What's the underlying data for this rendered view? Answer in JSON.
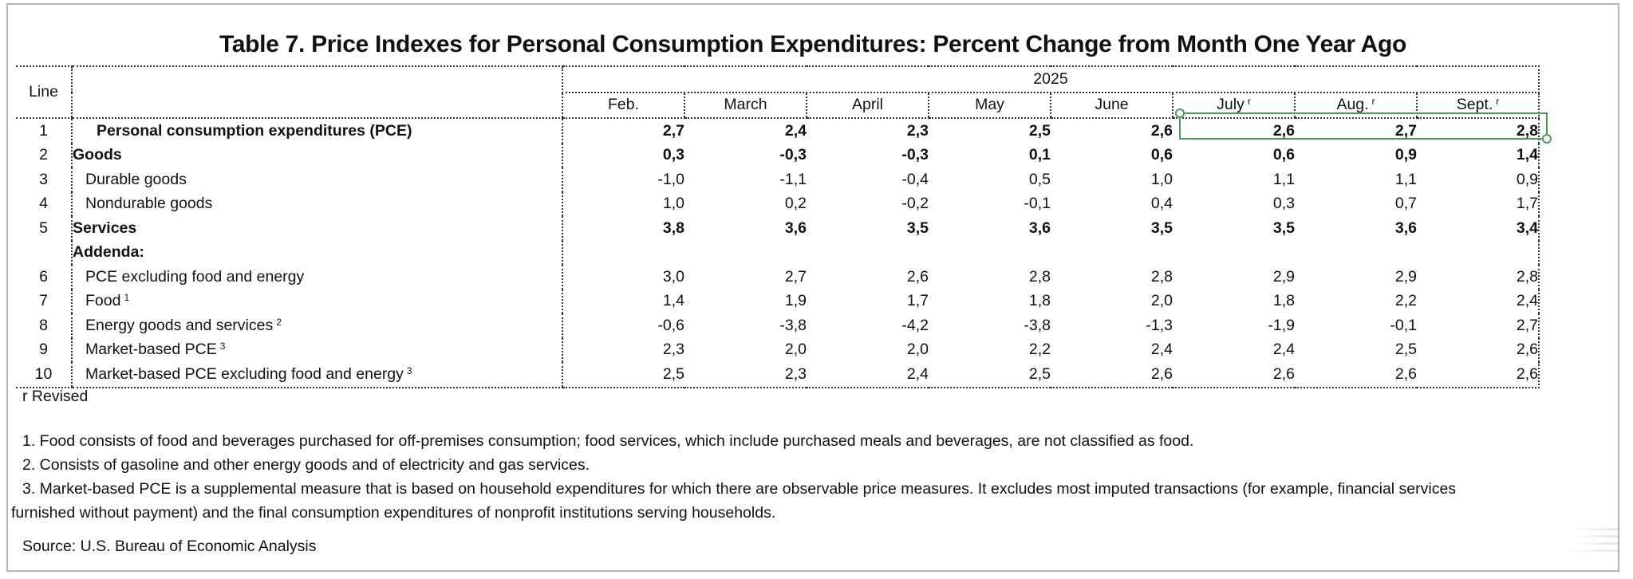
{
  "title": "Table 7. Price Indexes for Personal Consumption Expenditures: Percent Change from Month One Year Ago",
  "table": {
    "line_header": "Line",
    "year": "2025",
    "months": [
      {
        "label": "Feb.",
        "revised_mark": ""
      },
      {
        "label": "March",
        "revised_mark": ""
      },
      {
        "label": "April",
        "revised_mark": ""
      },
      {
        "label": "May",
        "revised_mark": ""
      },
      {
        "label": "June",
        "revised_mark": ""
      },
      {
        "label": "July",
        "revised_mark": "r"
      },
      {
        "label": "Aug.",
        "revised_mark": "r"
      },
      {
        "label": "Sept.",
        "revised_mark": "r"
      }
    ],
    "rows": [
      {
        "line": "1",
        "label": "Personal consumption expenditures (PCE)",
        "note": "",
        "bold": true,
        "indent": 2,
        "values": [
          "2,7",
          "2,4",
          "2,3",
          "2,5",
          "2,6",
          "2,6",
          "2,7",
          "2,8"
        ]
      },
      {
        "line": "2",
        "label": "Goods",
        "note": "",
        "bold": true,
        "indent": 0,
        "values": [
          "0,3",
          "-0,3",
          "-0,3",
          "0,1",
          "0,6",
          "0,6",
          "0,9",
          "1,4"
        ]
      },
      {
        "line": "3",
        "label": "Durable goods",
        "note": "",
        "bold": false,
        "indent": 1,
        "values": [
          "-1,0",
          "-1,1",
          "-0,4",
          "0,5",
          "1,0",
          "1,1",
          "1,1",
          "0,9"
        ]
      },
      {
        "line": "4",
        "label": "Nondurable goods",
        "note": "",
        "bold": false,
        "indent": 1,
        "values": [
          "1,0",
          "0,2",
          "-0,2",
          "-0,1",
          "0,4",
          "0,3",
          "0,7",
          "1,7"
        ]
      },
      {
        "line": "5",
        "label": "Services",
        "note": "",
        "bold": true,
        "indent": 0,
        "values": [
          "3,8",
          "3,6",
          "3,5",
          "3,6",
          "3,5",
          "3,5",
          "3,6",
          "3,4"
        ]
      },
      {
        "line": "",
        "label": "Addenda:",
        "note": "",
        "bold": true,
        "indent": 0,
        "values": [
          "",
          "",
          "",
          "",
          "",
          "",
          "",
          ""
        ]
      },
      {
        "line": "6",
        "label": "PCE excluding food and energy",
        "note": "",
        "bold": false,
        "indent": 1,
        "values": [
          "3,0",
          "2,7",
          "2,6",
          "2,8",
          "2,8",
          "2,9",
          "2,9",
          "2,8"
        ]
      },
      {
        "line": "7",
        "label": "Food",
        "note": "1",
        "bold": false,
        "indent": 1,
        "values": [
          "1,4",
          "1,9",
          "1,7",
          "1,8",
          "2,0",
          "1,8",
          "2,2",
          "2,4"
        ]
      },
      {
        "line": "8",
        "label": "Energy goods and services",
        "note": "2",
        "bold": false,
        "indent": 1,
        "values": [
          "-0,6",
          "-3,8",
          "-4,2",
          "-3,8",
          "-1,3",
          "-1,9",
          "-0,1",
          "2,7"
        ]
      },
      {
        "line": "9",
        "label": "Market-based PCE",
        "note": "3",
        "bold": false,
        "indent": 1,
        "values": [
          "2,3",
          "2,0",
          "2,0",
          "2,2",
          "2,4",
          "2,4",
          "2,5",
          "2,6"
        ]
      },
      {
        "line": "10",
        "label": "Market-based PCE excluding food and energy",
        "note": "3",
        "bold": false,
        "indent": 1,
        "values": [
          "2,5",
          "2,3",
          "2,4",
          "2,5",
          "2,6",
          "2,6",
          "2,6",
          "2,6"
        ]
      }
    ]
  },
  "selection": {
    "row_line": "1",
    "from_month": "July",
    "to_month": "Sept.",
    "color": "#4e9a5a"
  },
  "notes": {
    "revised": "r Revised",
    "footnotes": [
      "1. Food consists of food and beverages purchased for off-premises consumption; food services, which include purchased meals and beverages, are not classified as food.",
      "2. Consists of gasoline and other energy goods and of electricity and gas services.",
      "3. Market-based PCE is a supplemental measure that is based on household expenditures for which there are observable price measures. It excludes most imputed transactions (for example, financial services",
      "furnished without payment) and the final consumption expenditures of nonprofit institutions serving households."
    ],
    "source": "Source: U.S. Bureau of Economic Analysis"
  }
}
